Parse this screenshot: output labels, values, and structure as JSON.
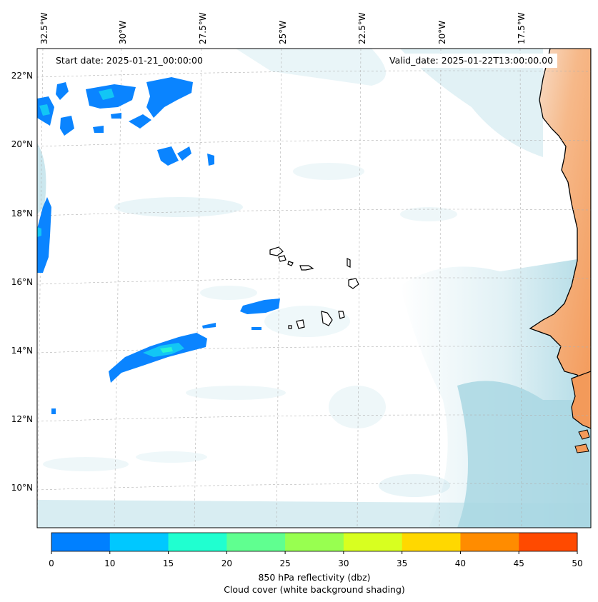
{
  "header": {
    "start_date": "Start date: 2025-01-21_00:00:00",
    "valid_date": "Valid_date: 2025-01-22T13:00:00.00"
  },
  "axes": {
    "lon_labels": [
      "32.5°W",
      "30°W",
      "27.5°W",
      "25°W",
      "22.5°W",
      "20°W",
      "17.5°W"
    ],
    "lat_labels": [
      "22°N",
      "20°N",
      "18°N",
      "16°N",
      "14°N",
      "12°N",
      "10°N"
    ]
  },
  "colorbar": {
    "ticks": [
      "0",
      "10",
      "15",
      "20",
      "25",
      "30",
      "35",
      "40",
      "45",
      "50"
    ],
    "colors": [
      "#0080ff",
      "#00c8ff",
      "#20ffd0",
      "#60ff90",
      "#98ff50",
      "#d8ff20",
      "#ffd800",
      "#ff8c00",
      "#ff4a00"
    ],
    "label_line1": "850 hPa reflectivity (dbz)",
    "label_line2": "Cloud cover (white background shading)"
  },
  "colors": {
    "land": "#f4a46a",
    "cloud_shade": "#a9d7e3",
    "echo_low": "#0a84ff",
    "echo_mid": "#12c6f5",
    "echo_high": "#27f3d3"
  }
}
